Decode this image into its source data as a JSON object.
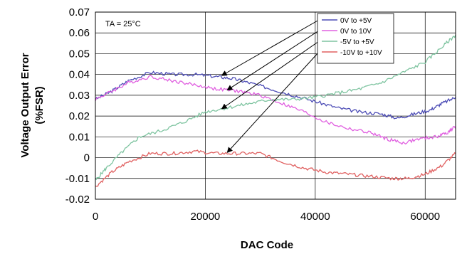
{
  "chart_data": {
    "type": "line",
    "title": "",
    "xlabel": "DAC Code",
    "ylabel": "Voltage Output Error",
    "ylabel_unit": "(%FSR)",
    "xlim": [
      0,
      65535
    ],
    "ylim": [
      -0.02,
      0.07
    ],
    "xticks": [
      0,
      20000,
      40000,
      60000
    ],
    "xtick_labels": [
      "0",
      "20000",
      "40000",
      "60000"
    ],
    "yticks": [
      -0.02,
      -0.01,
      0,
      0.01,
      0.02,
      0.03,
      0.04,
      0.05,
      0.06,
      0.07
    ],
    "ytick_labels": [
      "-0.02",
      "-0.01",
      "0",
      "0.01",
      "0.02",
      "0.03",
      "0.04",
      "0.05",
      "0.06",
      "0.07"
    ],
    "grid": true,
    "legend_position": "top-right",
    "annotation": "TA = 25°C",
    "series": [
      {
        "name": "0V to +5V",
        "color": "#4b4bb5",
        "x": [
          0,
          3000,
          6000,
          10000,
          14000,
          18000,
          22000,
          25000,
          28000,
          32000,
          36000,
          40000,
          44000,
          48000,
          52000,
          55000,
          58000,
          61000,
          63000,
          65535
        ],
        "y": [
          0.028,
          0.032,
          0.037,
          0.041,
          0.04,
          0.04,
          0.039,
          0.038,
          0.036,
          0.033,
          0.03,
          0.027,
          0.024,
          0.022,
          0.021,
          0.019,
          0.021,
          0.023,
          0.026,
          0.029
        ]
      },
      {
        "name": "0V to 10V",
        "color": "#e060e0",
        "x": [
          0,
          3000,
          6000,
          10000,
          14000,
          18000,
          22000,
          26000,
          30000,
          34000,
          38000,
          42000,
          46000,
          50000,
          53000,
          56000,
          59000,
          62000,
          64000,
          65535
        ],
        "y": [
          0.028,
          0.032,
          0.036,
          0.039,
          0.037,
          0.035,
          0.033,
          0.032,
          0.03,
          0.026,
          0.022,
          0.017,
          0.014,
          0.012,
          0.009,
          0.007,
          0.009,
          0.01,
          0.012,
          0.015
        ]
      },
      {
        "name": "-5V to +5V",
        "color": "#7ec4a0",
        "x": [
          0,
          2000,
          5000,
          8000,
          12000,
          16000,
          20000,
          24000,
          28000,
          32000,
          36000,
          40000,
          44000,
          48000,
          52000,
          56000,
          60000,
          63000,
          65535
        ],
        "y": [
          -0.011,
          -0.005,
          0.003,
          0.01,
          0.013,
          0.017,
          0.022,
          0.024,
          0.026,
          0.028,
          0.028,
          0.029,
          0.031,
          0.033,
          0.036,
          0.041,
          0.046,
          0.053,
          0.059
        ]
      },
      {
        "name": "-10V to +10V",
        "color": "#e06060",
        "x": [
          0,
          3000,
          6000,
          10000,
          14000,
          18000,
          22000,
          26000,
          30000,
          34000,
          38000,
          42000,
          46000,
          50000,
          54000,
          57000,
          60000,
          63000,
          65535
        ],
        "y": [
          -0.014,
          -0.007,
          -0.002,
          0.002,
          0.002,
          0.003,
          0.002,
          0.002,
          0.002,
          -0.002,
          -0.005,
          -0.007,
          -0.008,
          -0.009,
          -0.01,
          -0.01,
          -0.008,
          -0.004,
          0.002
        ]
      }
    ],
    "arrows": [
      {
        "from_series": "0V to +5V",
        "to": [
          23000,
          0.0395
        ]
      },
      {
        "from_series": "0V to 10V",
        "to": [
          24000,
          0.0325
        ]
      },
      {
        "from_series": "-5V to +5V",
        "to": [
          23000,
          0.0235
        ]
      },
      {
        "from_series": "-10V to +10V",
        "to": [
          24000,
          0.0025
        ]
      }
    ]
  }
}
